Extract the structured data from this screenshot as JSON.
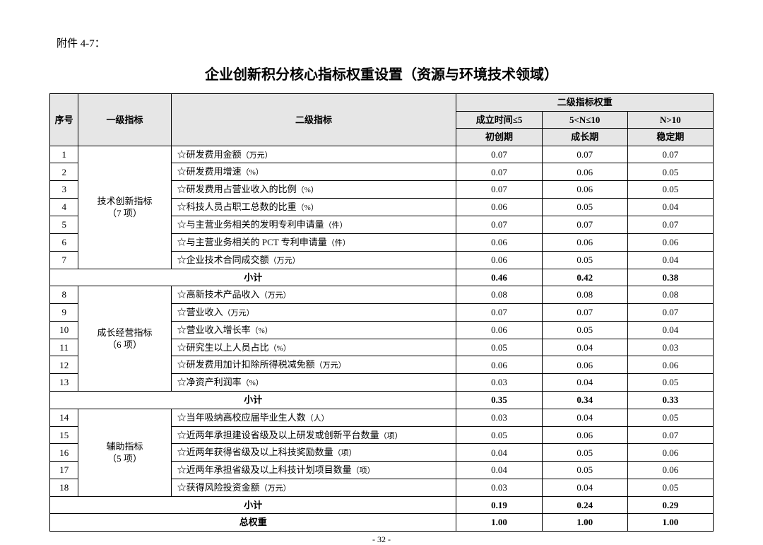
{
  "attachment_label": "附件 4-7：",
  "title": "企业创新积分核心指标权重设置（资源与环境技术领域）",
  "page_number": "- 32 -",
  "columns": {
    "index": "序号",
    "primary": "一级指标",
    "secondary": "二级指标",
    "weight_group": "二级指标权重",
    "period1_cond": "成立时间≤5",
    "period2_cond": "5<N≤10",
    "period3_cond": "N>10",
    "period1_name": "初创期",
    "period2_name": "成长期",
    "period3_name": "稳定期"
  },
  "groups": [
    {
      "primary_label": "技术创新指标\n（7 项）",
      "rows": [
        {
          "idx": "1",
          "name": "☆研发费用金额",
          "unit": "（万元）",
          "w": [
            "0.07",
            "0.07",
            "0.07"
          ]
        },
        {
          "idx": "2",
          "name": "☆研发费用增速",
          "unit": "（%）",
          "w": [
            "0.07",
            "0.06",
            "0.05"
          ]
        },
        {
          "idx": "3",
          "name": "☆研发费用占营业收入的比例",
          "unit": "（%）",
          "w": [
            "0.07",
            "0.06",
            "0.05"
          ]
        },
        {
          "idx": "4",
          "name": "☆科技人员占职工总数的比重",
          "unit": "（%）",
          "w": [
            "0.06",
            "0.05",
            "0.04"
          ]
        },
        {
          "idx": "5",
          "name": "☆与主营业务相关的发明专利申请量",
          "unit": "（件）",
          "w": [
            "0.07",
            "0.07",
            "0.07"
          ]
        },
        {
          "idx": "6",
          "name": "☆与主营业务相关的 PCT 专利申请量",
          "unit": "（件）",
          "w": [
            "0.06",
            "0.06",
            "0.06"
          ]
        },
        {
          "idx": "7",
          "name": "☆企业技术合同成交额",
          "unit": "（万元）",
          "w": [
            "0.06",
            "0.05",
            "0.04"
          ]
        }
      ],
      "subtotal_label": "小计",
      "subtotal": [
        "0.46",
        "0.42",
        "0.38"
      ]
    },
    {
      "primary_label": "成长经营指标\n（6 项）",
      "rows": [
        {
          "idx": "8",
          "name": "☆高新技术产品收入",
          "unit": "（万元）",
          "w": [
            "0.08",
            "0.08",
            "0.08"
          ]
        },
        {
          "idx": "9",
          "name": "☆营业收入",
          "unit": "（万元）",
          "w": [
            "0.07",
            "0.07",
            "0.07"
          ]
        },
        {
          "idx": "10",
          "name": "☆营业收入增长率",
          "unit": "（%）",
          "w": [
            "0.06",
            "0.05",
            "0.04"
          ]
        },
        {
          "idx": "11",
          "name": "☆研究生以上人员占比",
          "unit": "（%）",
          "w": [
            "0.05",
            "0.04",
            "0.03"
          ]
        },
        {
          "idx": "12",
          "name": "☆研发费用加计扣除所得税减免额",
          "unit": "（万元）",
          "w": [
            "0.06",
            "0.06",
            "0.06"
          ]
        },
        {
          "idx": "13",
          "name": "☆净资产利润率",
          "unit": "（%）",
          "w": [
            "0.03",
            "0.04",
            "0.05"
          ]
        }
      ],
      "subtotal_label": "小计",
      "subtotal": [
        "0.35",
        "0.34",
        "0.33"
      ]
    },
    {
      "primary_label": "辅助指标\n（5 项）",
      "rows": [
        {
          "idx": "14",
          "name": "☆当年吸纳高校应届毕业生人数",
          "unit": "（人）",
          "w": [
            "0.03",
            "0.04",
            "0.05"
          ]
        },
        {
          "idx": "15",
          "name": "☆近两年承担建设省级及以上研发或创新平台数量",
          "unit": "（项）",
          "w": [
            "0.05",
            "0.06",
            "0.07"
          ]
        },
        {
          "idx": "16",
          "name": "☆近两年获得省级及以上科技奖励数量",
          "unit": "（项）",
          "w": [
            "0.04",
            "0.05",
            "0.06"
          ]
        },
        {
          "idx": "17",
          "name": "☆近两年承担省级及以上科技计划项目数量",
          "unit": "（项）",
          "w": [
            "0.04",
            "0.05",
            "0.06"
          ]
        },
        {
          "idx": "18",
          "name": "☆获得风险投资金额",
          "unit": "（万元）",
          "w": [
            "0.03",
            "0.04",
            "0.05"
          ]
        }
      ],
      "subtotal_label": "小计",
      "subtotal": [
        "0.19",
        "0.24",
        "0.29"
      ]
    }
  ],
  "total_label": "总权重",
  "total": [
    "1.00",
    "1.00",
    "1.00"
  ]
}
